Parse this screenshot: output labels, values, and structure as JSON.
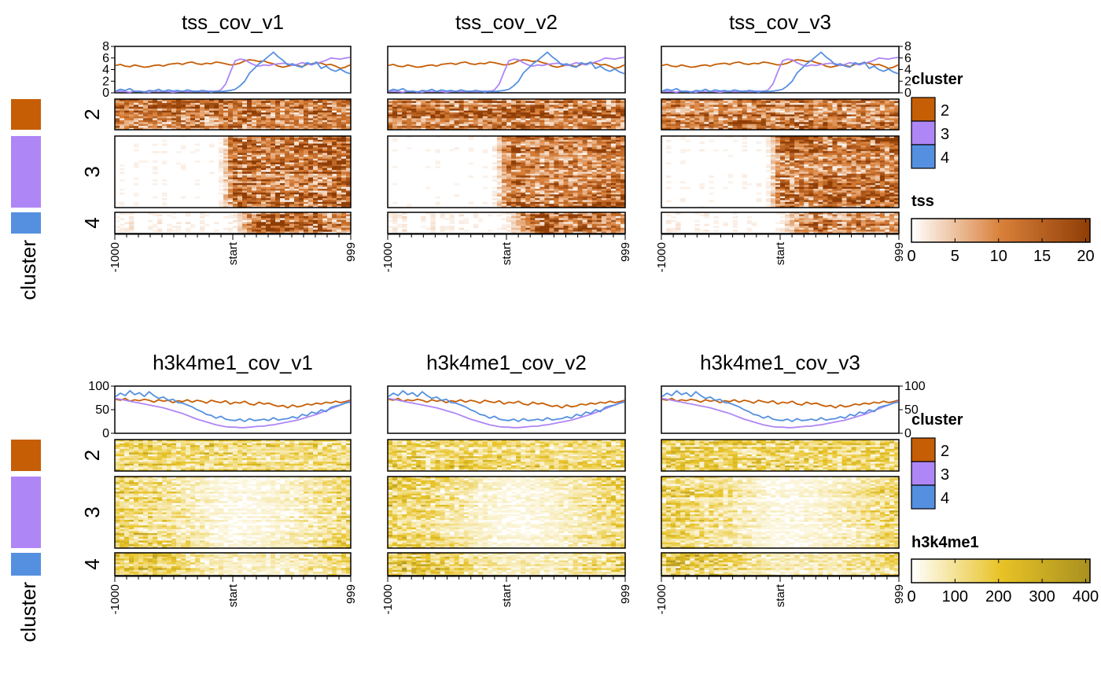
{
  "chart_data": [
    {
      "type": "heatmap",
      "signal": "tss",
      "titles": [
        "tss_cov_v1",
        "tss_cov_v2",
        "tss_cov_v3"
      ],
      "profile_ylim": [
        0,
        8
      ],
      "profile_yticks": [
        "0",
        "2",
        "4",
        "6",
        "8"
      ],
      "x_ticks": [
        "-1000",
        "start",
        "999"
      ],
      "row_groups": [
        {
          "cluster": "2",
          "color": "#C65E06",
          "rows": 30
        },
        {
          "cluster": "3",
          "color": "#AF86F6",
          "rows": 70
        },
        {
          "cluster": "4",
          "color": "#5590E0",
          "rows": 18
        }
      ],
      "profiles": [
        {
          "cluster": "2",
          "color": "#C65E06",
          "values": [
            4.7,
            4.9,
            4.6,
            4.5,
            4.8,
            4.6,
            4.4,
            4.5,
            4.7,
            4.8,
            4.6,
            4.9,
            5.0,
            5.1,
            4.9,
            5.2,
            5.3,
            5.0,
            4.9,
            5.1,
            5.0,
            5.3,
            5.2,
            5.0,
            4.8,
            4.9,
            5.1,
            5.5,
            5.7,
            5.6,
            5.4,
            5.5,
            5.2,
            5.0,
            4.6,
            4.4,
            4.6,
            4.8,
            4.7,
            4.5,
            4.9,
            5.0,
            5.2,
            5.1,
            4.8,
            4.9,
            4.6,
            4.2,
            4.4,
            4.8
          ]
        },
        {
          "cluster": "3",
          "color": "#AF86F6",
          "values": [
            0.2,
            0.3,
            0.2,
            0.1,
            0.3,
            0.2,
            0.2,
            0.1,
            0.3,
            0.2,
            0.3,
            0.2,
            0.1,
            0.2,
            0.3,
            0.2,
            0.2,
            0.3,
            0.2,
            0.2,
            0.3,
            0.2,
            0.5,
            1.5,
            3.6,
            5.5,
            5.8,
            5.7,
            5.2,
            4.8,
            4.6,
            4.8,
            4.7,
            4.9,
            5.0,
            5.1,
            5.0,
            4.7,
            4.9,
            5.2,
            5.0,
            4.8,
            5.1,
            5.3,
            5.6,
            6.0,
            5.9,
            5.8,
            6.0,
            6.1
          ]
        },
        {
          "cluster": "4",
          "color": "#5590E0",
          "values": [
            0.3,
            0.6,
            0.4,
            0.7,
            0.2,
            0.3,
            0.1,
            0.4,
            0.3,
            0.6,
            0.2,
            0.5,
            0.3,
            0.4,
            0.2,
            0.5,
            0.3,
            0.2,
            0.4,
            0.3,
            0.1,
            0.3,
            0.2,
            0.3,
            0.4,
            0.6,
            1.2,
            2.0,
            3.4,
            4.2,
            5.0,
            5.6,
            6.3,
            7.0,
            6.2,
            5.6,
            4.8,
            5.0,
            4.6,
            4.4,
            5.2,
            4.9,
            5.3,
            4.2,
            4.6,
            4.0,
            3.7,
            4.1,
            3.6,
            3.3
          ]
        }
      ],
      "color_scale": {
        "title": "tss",
        "min": 0,
        "max": 20.5,
        "ticks": [
          "0",
          "5",
          "10",
          "15",
          "20"
        ],
        "tick_values": [
          0,
          5,
          10,
          15,
          20
        ],
        "low": "#FFFFFF",
        "mid": "#D9803A",
        "high": "#8F3D06"
      }
    },
    {
      "type": "heatmap",
      "signal": "h3k4me1",
      "titles": [
        "h3k4me1_cov_v1",
        "h3k4me1_cov_v2",
        "h3k4me1_cov_v3"
      ],
      "profile_ylim": [
        0,
        100
      ],
      "profile_yticks": [
        "0",
        "50",
        "100"
      ],
      "x_ticks": [
        "-1000",
        "start",
        "999"
      ],
      "row_groups": [
        {
          "cluster": "2",
          "color": "#C65E06",
          "rows": 30
        },
        {
          "cluster": "3",
          "color": "#AF86F6",
          "rows": 70
        },
        {
          "cluster": "4",
          "color": "#5590E0",
          "rows": 18
        }
      ],
      "profiles": [
        {
          "cluster": "2",
          "color": "#C65E06",
          "values": [
            72,
            70,
            74,
            68,
            71,
            69,
            72,
            70,
            66,
            71,
            68,
            70,
            65,
            69,
            67,
            71,
            66,
            70,
            68,
            64,
            70,
            67,
            65,
            69,
            62,
            66,
            64,
            68,
            62,
            60,
            66,
            62,
            64,
            60,
            57,
            59,
            54,
            60,
            56,
            58,
            62,
            60,
            64,
            62,
            66,
            64,
            68,
            65,
            67,
            70
          ]
        },
        {
          "cluster": "3",
          "color": "#AF86F6",
          "values": [
            74,
            72,
            70,
            68,
            66,
            64,
            62,
            60,
            58,
            56,
            54,
            51,
            48,
            45,
            42,
            38,
            34,
            30,
            27,
            24,
            21,
            18,
            16,
            14,
            13,
            13,
            12,
            12,
            13,
            14,
            15,
            15,
            17,
            18,
            20,
            22,
            24,
            26,
            28,
            31,
            34,
            37,
            40,
            44,
            48,
            52,
            56,
            60,
            64,
            68
          ]
        },
        {
          "cluster": "4",
          "color": "#5590E0",
          "values": [
            78,
            85,
            80,
            90,
            82,
            86,
            78,
            88,
            80,
            74,
            77,
            70,
            72,
            65,
            64,
            60,
            56,
            50,
            46,
            40,
            38,
            32,
            36,
            30,
            28,
            27,
            30,
            25,
            31,
            27,
            28,
            30,
            27,
            33,
            28,
            30,
            31,
            35,
            32,
            40,
            37,
            45,
            42,
            50,
            46,
            55,
            58,
            60,
            64,
            66
          ]
        }
      ],
      "color_scale": {
        "title": "h3k4me1",
        "min": 0,
        "max": 410,
        "ticks": [
          "0",
          "100",
          "200",
          "300",
          "400"
        ],
        "tick_values": [
          0,
          100,
          200,
          300,
          400
        ],
        "low": "#FFFFFF",
        "mid": "#E8C326",
        "high": "#A99020"
      }
    }
  ],
  "side_annotation": {
    "label": "cluster"
  },
  "cluster_legend": {
    "title": "cluster",
    "entries": [
      {
        "label": "2",
        "color": "#C65E06"
      },
      {
        "label": "3",
        "color": "#AF86F6"
      },
      {
        "label": "4",
        "color": "#5590E0"
      }
    ]
  }
}
